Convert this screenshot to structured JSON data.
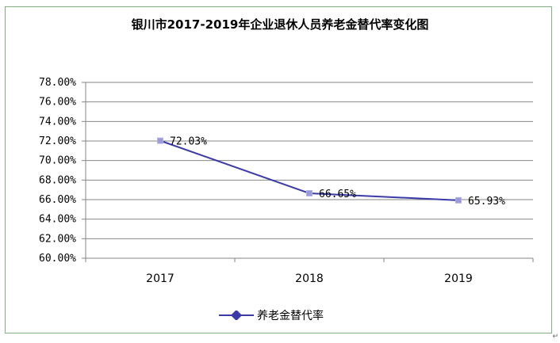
{
  "chart_data": {
    "type": "line",
    "title": "银川市2017-2019年企业退休人员养老金替代率变化图",
    "categories": [
      "2017",
      "2018",
      "2019"
    ],
    "series": [
      {
        "name": "养老金替代率",
        "values": [
          72.03,
          66.65,
          65.93
        ],
        "labels": [
          "72.03%",
          "66.65%",
          "65.93%"
        ],
        "color": "#3a3aa8"
      }
    ],
    "y_ticks": [
      "60.00%",
      "62.00%",
      "64.00%",
      "66.00%",
      "68.00%",
      "70.00%",
      "72.00%",
      "74.00%",
      "76.00%",
      "78.00%"
    ],
    "ylim": [
      60,
      78
    ],
    "ystep": 2,
    "grid": true,
    "legend_position": "bottom"
  },
  "corner_mark": "↵"
}
